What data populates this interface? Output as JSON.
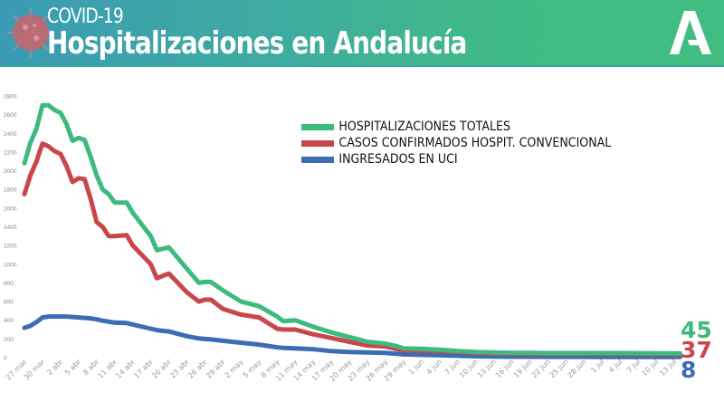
{
  "header": {
    "subtitle": "COVID-19",
    "title": "Hospitalizaciones en Andalucía",
    "logo_letter": "A"
  },
  "chart_data": {
    "type": "line",
    "title": "",
    "xlabel": "",
    "ylabel": "",
    "ylim": [
      0,
      2800
    ],
    "y_ticks": [
      0,
      200,
      400,
      600,
      800,
      1000,
      1200,
      1400,
      1600,
      1800,
      2000,
      2200,
      2400,
      2600,
      2800
    ],
    "x_tick_labels": [
      "27 mar",
      "30 mar",
      "2 abr",
      "5 abr",
      "8 abr",
      "11 abr",
      "14 abr",
      "17 abr",
      "20 abr",
      "23 abr",
      "26 abr",
      "29 abr",
      "2 may",
      "5 may",
      "8 may",
      "11 may",
      "14 may",
      "17 may",
      "20 may",
      "23 may",
      "26 may",
      "29 may",
      "1 jun",
      "4 jun",
      "7 jun",
      "10 jun",
      "13 jun",
      "16 jun",
      "19 jun",
      "22 jun",
      "25 jun",
      "28 jun",
      "1 jul",
      "4 jul",
      "7 jul",
      "10 jul",
      "13 jul"
    ],
    "grid": false,
    "legend_position": "top-right",
    "x": [
      "27 mar",
      "28 mar",
      "29 mar",
      "30 mar",
      "31 mar",
      "1 abr",
      "2 abr",
      "3 abr",
      "4 abr",
      "5 abr",
      "6 abr",
      "7 abr",
      "8 abr",
      "9 abr",
      "10 abr",
      "11 abr",
      "13 abr",
      "14 abr",
      "17 abr",
      "18 abr",
      "20 abr",
      "23 abr",
      "25 abr",
      "26 abr",
      "27 abr",
      "29 abr",
      "2 may",
      "5 may",
      "8 may",
      "9 may",
      "11 may",
      "14 may",
      "17 may",
      "20 may",
      "23 may",
      "26 may",
      "28 may",
      "29 may",
      "1 jun",
      "4 jun",
      "7 jun",
      "10 jun",
      "13 jun",
      "16 jun",
      "19 jun",
      "22 jun",
      "25 jun",
      "28 jun",
      "1 jul",
      "4 jul",
      "7 jul",
      "10 jul",
      "14 jul"
    ],
    "series": [
      {
        "name": "HOSPITALIZACIONES TOTALES",
        "color": "#3dba7e",
        "final_value": "45",
        "values": [
          2080,
          2300,
          2450,
          2700,
          2700,
          2650,
          2620,
          2500,
          2320,
          2350,
          2330,
          2150,
          1950,
          1800,
          1750,
          1660,
          1660,
          1550,
          1300,
          1150,
          1180,
          950,
          800,
          810,
          810,
          720,
          600,
          550,
          440,
          390,
          400,
          330,
          270,
          220,
          170,
          150,
          120,
          100,
          95,
          85,
          70,
          60,
          55,
          50,
          50,
          48,
          48,
          48,
          48,
          48,
          47,
          46,
          45
        ]
      },
      {
        "name": "CASOS CONFIRMADOS HOSPIT. CONVENCIONAL",
        "color": "#c9464a",
        "final_value": "37",
        "values": [
          1750,
          1950,
          2100,
          2290,
          2260,
          2210,
          2180,
          2050,
          1880,
          1920,
          1910,
          1700,
          1450,
          1400,
          1300,
          1300,
          1310,
          1200,
          1000,
          850,
          900,
          700,
          600,
          620,
          620,
          520,
          460,
          430,
          310,
          300,
          300,
          250,
          210,
          170,
          130,
          120,
          90,
          80,
          75,
          70,
          60,
          50,
          45,
          42,
          40,
          40,
          40,
          40,
          40,
          40,
          38,
          38,
          37
        ]
      },
      {
        "name": "INGRESADOS EN UCI",
        "color": "#3a6db3",
        "final_value": "8",
        "values": [
          320,
          340,
          380,
          430,
          440,
          440,
          440,
          440,
          435,
          430,
          425,
          420,
          410,
          395,
          385,
          375,
          370,
          355,
          310,
          295,
          280,
          230,
          205,
          200,
          195,
          180,
          160,
          140,
          110,
          105,
          100,
          90,
          70,
          60,
          55,
          50,
          40,
          35,
          30,
          25,
          20,
          15,
          12,
          10,
          10,
          9,
          9,
          9,
          8,
          8,
          8,
          8,
          8
        ]
      }
    ]
  }
}
